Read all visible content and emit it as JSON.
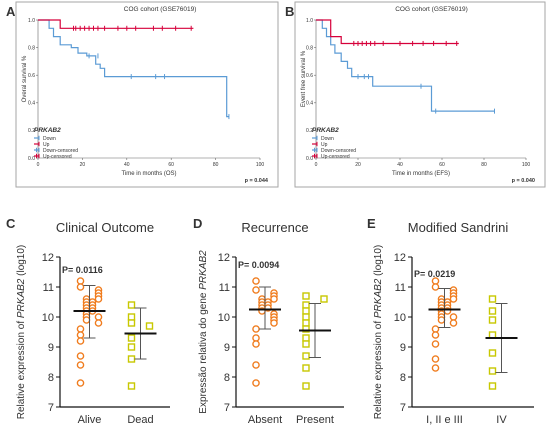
{
  "figure": {
    "panel_letters": [
      "A",
      "B",
      "C",
      "D",
      "E"
    ]
  },
  "colors": {
    "down": "#5b9bd5",
    "up": "#d6003a",
    "orange": "#f07c1e",
    "olive": "#c8c800",
    "border": "#a6a6a6",
    "text": "#333333"
  },
  "chart_data": [
    {
      "panel": "A",
      "type": "line",
      "subtype": "kaplan-meier",
      "title": "COG cohort (GSE76019)",
      "xlabel": "Time in months (OS)",
      "ylabel": "Overal survival %",
      "xticks": [
        "0",
        "20",
        "40",
        "60",
        "80",
        "100"
      ],
      "yticks": [
        "0.0",
        "0.2",
        "0.4",
        "0.6",
        "0.8",
        "1.0"
      ],
      "xlim": [
        0,
        100
      ],
      "ylim": [
        0,
        1.0
      ],
      "legend_title": "PRKAB2",
      "legend": [
        "Down",
        "Up",
        "Down-censored",
        "Up-censored"
      ],
      "pvalue": "p = 0.044",
      "series": [
        {
          "name": "Down",
          "x": [
            0,
            5,
            5,
            7,
            7,
            10,
            10,
            15,
            15,
            18,
            18,
            22,
            22,
            26,
            26,
            28,
            28,
            30,
            30,
            57,
            57,
            85,
            85,
            86
          ],
          "y": [
            1.0,
            1.0,
            0.94,
            0.94,
            0.88,
            0.88,
            0.82,
            0.82,
            0.8,
            0.8,
            0.76,
            0.76,
            0.74,
            0.74,
            0.68,
            0.68,
            0.65,
            0.65,
            0.59,
            0.59,
            0.59,
            0.59,
            0.3,
            0.3
          ],
          "censored_x": [
            23,
            27,
            42,
            53,
            57,
            86
          ],
          "censored_y": [
            0.74,
            0.74,
            0.59,
            0.59,
            0.59,
            0.3
          ]
        },
        {
          "name": "Up",
          "x": [
            0,
            10,
            10,
            70
          ],
          "y": [
            1.0,
            1.0,
            0.94,
            0.94
          ],
          "censored_x": [
            16,
            17,
            19,
            21,
            23,
            25,
            27,
            30,
            36,
            40,
            44,
            52,
            56,
            62,
            69
          ],
          "censored_y": [
            0.94,
            0.94,
            0.94,
            0.94,
            0.94,
            0.94,
            0.94,
            0.94,
            0.94,
            0.94,
            0.94,
            0.94,
            0.94,
            0.94,
            0.94
          ]
        }
      ]
    },
    {
      "panel": "B",
      "type": "line",
      "subtype": "kaplan-meier",
      "title": "COG cohort (GSE76019)",
      "xlabel": "Time in months (EFS)",
      "ylabel": "Event free survival %",
      "xticks": [
        "0",
        "20",
        "40",
        "60",
        "80",
        "100"
      ],
      "yticks": [
        "0.0",
        "0.2",
        "0.4",
        "0.6",
        "0.8",
        "1.0"
      ],
      "xlim": [
        0,
        100
      ],
      "ylim": [
        0,
        1.0
      ],
      "legend_title": "PRKAB2",
      "legend": [
        "Down",
        "Up",
        "Down-censored",
        "Up-censored"
      ],
      "pvalue": "p = 0.040",
      "series": [
        {
          "name": "Down",
          "x": [
            0,
            3,
            3,
            5,
            5,
            7,
            7,
            9,
            9,
            12,
            12,
            15,
            15,
            17,
            17,
            27,
            27,
            55,
            55,
            85
          ],
          "y": [
            1.0,
            1.0,
            0.94,
            0.94,
            0.88,
            0.88,
            0.82,
            0.82,
            0.76,
            0.76,
            0.7,
            0.7,
            0.65,
            0.65,
            0.59,
            0.59,
            0.52,
            0.52,
            0.34,
            0.34
          ],
          "censored_x": [
            20,
            23,
            25,
            50,
            57,
            85
          ],
          "censored_y": [
            0.59,
            0.59,
            0.59,
            0.52,
            0.34,
            0.34
          ]
        },
        {
          "name": "Up",
          "x": [
            0,
            7,
            7,
            12,
            12,
            68
          ],
          "y": [
            1.0,
            1.0,
            0.88,
            0.88,
            0.83,
            0.83
          ],
          "censored_x": [
            18,
            20,
            22,
            24,
            26,
            28,
            32,
            40,
            46,
            51,
            56,
            62,
            67
          ],
          "censored_y": [
            0.83,
            0.83,
            0.83,
            0.83,
            0.83,
            0.83,
            0.83,
            0.83,
            0.83,
            0.83,
            0.83,
            0.83,
            0.83
          ]
        }
      ]
    },
    {
      "panel": "C",
      "type": "scatter",
      "title": "Clinical Outcome",
      "ylabel_parts": [
        "Relative expression of ",
        "PRKAB2",
        " (log10)"
      ],
      "ylim": [
        7,
        12
      ],
      "yticks": [
        "7",
        "8",
        "9",
        "10",
        "11",
        "12"
      ],
      "pvalue": "P= 0.0116",
      "categories": [
        "Alive",
        "Dead"
      ],
      "groups": [
        {
          "name": "Alive",
          "color": "orange",
          "marker": "circle",
          "values": [
            11.2,
            11.0,
            10.9,
            10.8,
            10.7,
            10.6,
            10.6,
            10.5,
            10.5,
            10.4,
            10.4,
            10.3,
            10.3,
            10.2,
            10.2,
            10.1,
            10.0,
            10.0,
            9.9,
            9.8,
            9.6,
            9.4,
            9.2,
            8.7,
            8.4,
            7.8
          ],
          "mean": 10.2,
          "sd_low": 9.3,
          "sd_high": 11.05
        },
        {
          "name": "Dead",
          "color": "olive",
          "marker": "square",
          "values": [
            10.4,
            10.0,
            9.8,
            9.7,
            9.3,
            9.0,
            8.6,
            7.7
          ],
          "mean": 9.45,
          "sd_low": 8.6,
          "sd_high": 10.3
        }
      ]
    },
    {
      "panel": "D",
      "type": "scatter",
      "title": "Recurrence",
      "ylabel_parts": [
        "Expressão relativa do gene ",
        "PRKAB2",
        ""
      ],
      "ylim": [
        7,
        12
      ],
      "yticks": [
        "7",
        "8",
        "9",
        "10",
        "11",
        "12"
      ],
      "pvalue": "P= 0.0094",
      "categories": [
        "Absent",
        "Present"
      ],
      "groups": [
        {
          "name": "Absent",
          "color": "orange",
          "marker": "circle",
          "values": [
            11.2,
            10.9,
            10.8,
            10.7,
            10.6,
            10.6,
            10.5,
            10.5,
            10.4,
            10.4,
            10.3,
            10.3,
            10.2,
            10.1,
            10.0,
            9.9,
            9.8,
            9.6,
            9.3,
            9.1,
            8.4,
            7.8
          ],
          "mean": 10.25,
          "sd_low": 9.6,
          "sd_high": 11.0
        },
        {
          "name": "Present",
          "color": "olive",
          "marker": "square",
          "values": [
            10.7,
            10.6,
            10.4,
            10.2,
            10.0,
            9.8,
            9.6,
            9.3,
            9.1,
            8.7,
            8.3,
            7.7
          ],
          "mean": 9.55,
          "sd_low": 8.65,
          "sd_high": 10.45
        }
      ]
    },
    {
      "panel": "E",
      "type": "scatter",
      "title": "Modified Sandrini",
      "ylabel_parts": [
        "Relative expression of ",
        "PRKAB2",
        " (log10)"
      ],
      "ylim": [
        7,
        12
      ],
      "yticks": [
        "7",
        "8",
        "9",
        "10",
        "11",
        "12"
      ],
      "pvalue": "P= 0.0219",
      "categories": [
        "I, II e III",
        "IV"
      ],
      "groups": [
        {
          "name": "I, II e III",
          "color": "orange",
          "marker": "circle",
          "values": [
            11.2,
            11.0,
            10.9,
            10.8,
            10.7,
            10.6,
            10.6,
            10.5,
            10.5,
            10.4,
            10.4,
            10.3,
            10.3,
            10.2,
            10.2,
            10.1,
            10.0,
            10.0,
            9.9,
            9.8,
            9.6,
            9.4,
            9.1,
            8.6,
            8.3
          ],
          "mean": 10.25,
          "sd_low": 9.65,
          "sd_high": 10.95
        },
        {
          "name": "IV",
          "color": "olive",
          "marker": "square",
          "values": [
            10.6,
            10.2,
            9.9,
            9.4,
            8.8,
            8.2,
            7.7
          ],
          "mean": 9.3,
          "sd_low": 8.15,
          "sd_high": 10.45
        }
      ]
    }
  ]
}
